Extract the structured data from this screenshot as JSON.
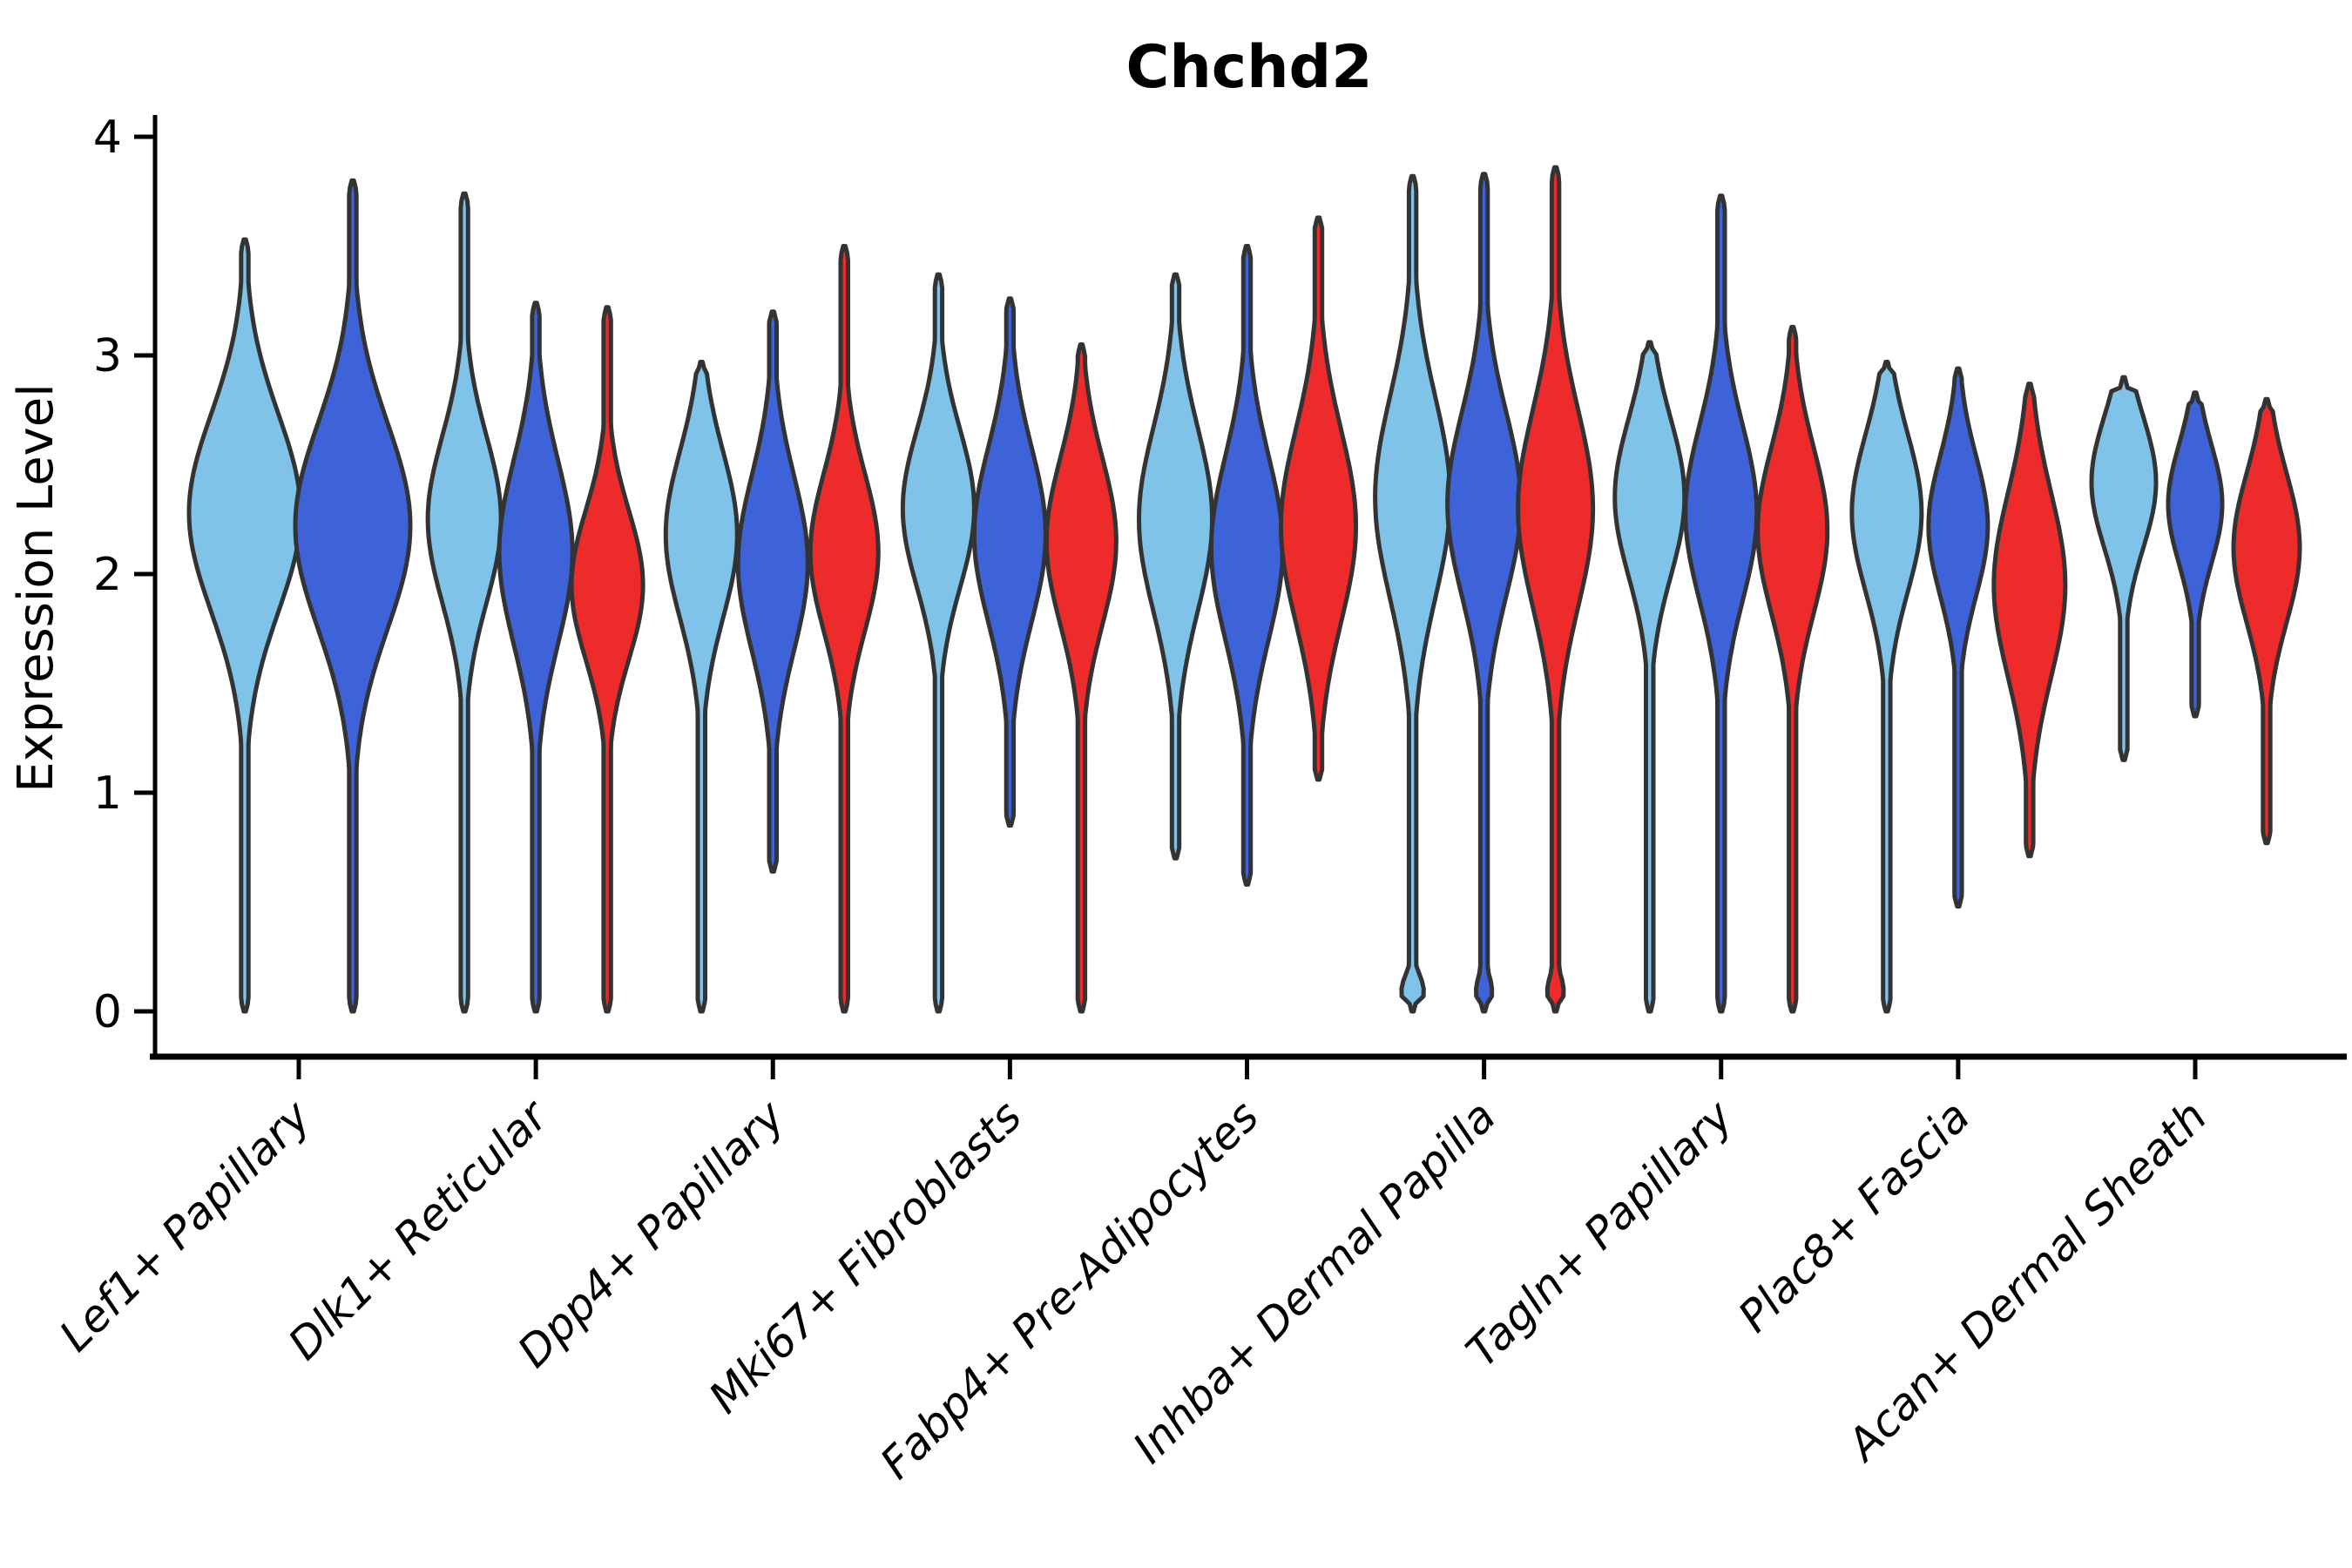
{
  "figure": {
    "title": "Chchd2",
    "y_axis_label": "Expression Level"
  },
  "chart_data": {
    "type": "violin",
    "title": "Chchd2",
    "ylabel": "Expression Level",
    "xlabel": "",
    "ylim": [
      0,
      4
    ],
    "yticks": [
      0,
      1,
      2,
      3,
      4
    ],
    "grid": false,
    "legend": "none",
    "x_label_rotation_deg": 45,
    "categories": [
      "Lef1+ Papillary",
      "Dlk1+ Reticular",
      "Dpp4+ Papillary",
      "Mki67+ Fibroblasts",
      "Fabp4+ Pre-Adipocytes",
      "Inhba+ Dermal Papilla",
      "Tagln+ Papillary",
      "Plac8+ Fascia",
      "Acan+ Dermal Sheath"
    ],
    "series": [
      {
        "name": "light_blue",
        "color": "#7FC4E8"
      },
      {
        "name": "blue",
        "color": "#3E63D8"
      },
      {
        "name": "red",
        "color": "#EE2B2B"
      }
    ],
    "edge_color": "#333333",
    "violins": [
      {
        "category": "Lef1+ Papillary",
        "series": "light_blue",
        "min": 0,
        "max": 3.53,
        "mode": 2.28,
        "sigma": 0.45,
        "hw": 64,
        "foot": 0
      },
      {
        "category": "Lef1+ Papillary",
        "series": "blue",
        "min": 0,
        "max": 3.8,
        "mode": 2.22,
        "sigma": 0.47,
        "hw": 66,
        "foot": 0
      },
      {
        "category": "Dlk1+ Reticular",
        "series": "light_blue",
        "min": 0,
        "max": 3.74,
        "mode": 2.25,
        "sigma": 0.38,
        "hw": 42,
        "foot": 0
      },
      {
        "category": "Dlk1+ Reticular",
        "series": "blue",
        "min": 0,
        "max": 3.24,
        "mode": 2.1,
        "sigma": 0.42,
        "hw": 42,
        "foot": 0
      },
      {
        "category": "Dlk1+ Reticular",
        "series": "red",
        "min": 0,
        "max": 3.22,
        "mode": 1.95,
        "sigma": 0.34,
        "hw": 41,
        "foot": 0
      },
      {
        "category": "Dpp4+ Papillary",
        "series": "light_blue",
        "min": 0,
        "max": 2.97,
        "mode": 2.18,
        "sigma": 0.38,
        "hw": 41,
        "foot": 0
      },
      {
        "category": "Dpp4+ Papillary",
        "series": "blue",
        "min": 0.64,
        "max": 3.2,
        "mode": 2.05,
        "sigma": 0.4,
        "hw": 40,
        "foot": 0
      },
      {
        "category": "Dpp4+ Papillary",
        "series": "red",
        "min": 0,
        "max": 3.5,
        "mode": 2.1,
        "sigma": 0.36,
        "hw": 39,
        "foot": 0
      },
      {
        "category": "Mki67+ Fibroblasts",
        "series": "light_blue",
        "min": 0,
        "max": 3.37,
        "mode": 2.3,
        "sigma": 0.36,
        "hw": 41,
        "foot": 0
      },
      {
        "category": "Mki67+ Fibroblasts",
        "series": "blue",
        "min": 0.85,
        "max": 3.26,
        "mode": 2.18,
        "sigma": 0.4,
        "hw": 41,
        "foot": 0
      },
      {
        "category": "Mki67+ Fibroblasts",
        "series": "red",
        "min": 0,
        "max": 3.05,
        "mode": 2.15,
        "sigma": 0.38,
        "hw": 40,
        "foot": 0
      },
      {
        "category": "Fabp4+ Pre-Adipocytes",
        "series": "light_blue",
        "min": 0.7,
        "max": 3.37,
        "mode": 2.25,
        "sigma": 0.42,
        "hw": 42,
        "foot": 0
      },
      {
        "category": "Fabp4+ Pre-Adipocytes",
        "series": "blue",
        "min": 0.58,
        "max": 3.5,
        "mode": 2.12,
        "sigma": 0.42,
        "hw": 41,
        "foot": 0
      },
      {
        "category": "Fabp4+ Pre-Adipocytes",
        "series": "red",
        "min": 1.06,
        "max": 3.63,
        "mode": 2.22,
        "sigma": 0.44,
        "hw": 43,
        "foot": 0
      },
      {
        "category": "Inhba+ Dermal Papilla",
        "series": "light_blue",
        "min": 0,
        "max": 3.82,
        "mode": 2.35,
        "sigma": 0.46,
        "hw": 43,
        "foot": 0.3
      },
      {
        "category": "Inhba+ Dermal Papilla",
        "series": "blue",
        "min": 0,
        "max": 3.83,
        "mode": 2.32,
        "sigma": 0.42,
        "hw": 42,
        "foot": 0.22
      },
      {
        "category": "Inhba+ Dermal Papilla",
        "series": "red",
        "min": 0,
        "max": 3.86,
        "mode": 2.3,
        "sigma": 0.45,
        "hw": 43,
        "foot": 0.22
      },
      {
        "category": "Tagln+ Papillary",
        "series": "light_blue",
        "min": 0,
        "max": 3.06,
        "mode": 2.35,
        "sigma": 0.36,
        "hw": 40,
        "foot": 0
      },
      {
        "category": "Tagln+ Papillary",
        "series": "blue",
        "min": 0,
        "max": 3.73,
        "mode": 2.28,
        "sigma": 0.4,
        "hw": 41,
        "foot": 0
      },
      {
        "category": "Tagln+ Papillary",
        "series": "red",
        "min": 0,
        "max": 3.13,
        "mode": 2.2,
        "sigma": 0.38,
        "hw": 40,
        "foot": 0
      },
      {
        "category": "Plac8+ Fascia",
        "series": "light_blue",
        "min": 0,
        "max": 2.97,
        "mode": 2.28,
        "sigma": 0.36,
        "hw": 40,
        "foot": 0
      },
      {
        "category": "Plac8+ Fascia",
        "series": "blue",
        "min": 0.48,
        "max": 2.94,
        "mode": 2.22,
        "sigma": 0.32,
        "hw": 34,
        "foot": 0
      },
      {
        "category": "Plac8+ Fascia",
        "series": "red",
        "min": 0.71,
        "max": 2.87,
        "mode": 1.95,
        "sigma": 0.42,
        "hw": 41,
        "foot": 0
      },
      {
        "category": "Acan+ Dermal Sheath",
        "series": "light_blue",
        "min": 1.15,
        "max": 2.9,
        "mode": 2.42,
        "sigma": 0.3,
        "hw": 37,
        "foot": 0
      },
      {
        "category": "Acan+ Dermal Sheath",
        "series": "blue",
        "min": 1.35,
        "max": 2.83,
        "mode": 2.32,
        "sigma": 0.27,
        "hw": 31,
        "foot": 0
      },
      {
        "category": "Acan+ Dermal Sheath",
        "series": "red",
        "min": 0.77,
        "max": 2.8,
        "mode": 2.12,
        "sigma": 0.34,
        "hw": 38,
        "foot": 0
      }
    ]
  }
}
